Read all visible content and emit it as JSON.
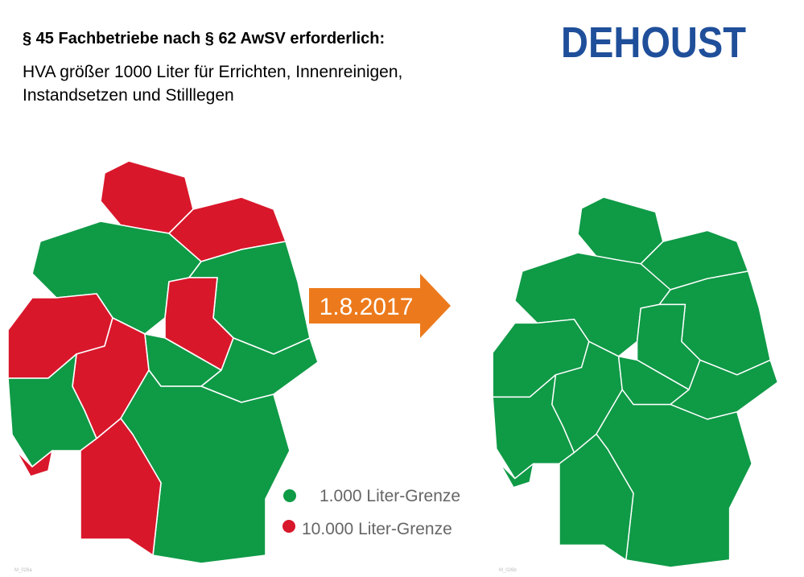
{
  "header": {
    "title": "§ 45 Fachbetriebe nach § 62 AwSV erforderlich:",
    "subtitle": [
      "HVA größer 1000 Liter für Errichten, Innenreinigen,",
      "Instandsetzen und Stilllegen"
    ],
    "logo": "DEHOUST"
  },
  "arrow": {
    "label": "1.8.2017"
  },
  "legend": [
    {
      "label": "1.000 Liter-Grenze"
    },
    {
      "label": "10.000 Liter-Grenze"
    }
  ],
  "footnotes": [
    "M_026a",
    "M_026b"
  ]
}
